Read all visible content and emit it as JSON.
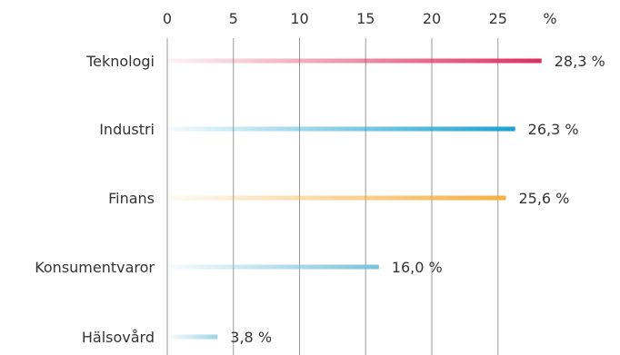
{
  "chart_data": {
    "type": "bar",
    "orientation": "horizontal",
    "unit_label": "%",
    "x_ticks": [
      0,
      5,
      10,
      15,
      20,
      25
    ],
    "xlim": [
      0,
      30
    ],
    "grid": true,
    "categories": [
      "Teknologi",
      "Industri",
      "Finans",
      "Konsumentvaror",
      "Hälsovård"
    ],
    "values": [
      28.3,
      26.3,
      25.6,
      16.0,
      3.8
    ],
    "value_labels": [
      "28,3 %",
      "26,3 %",
      "25,6 %",
      "16,0 %",
      "3,8 %"
    ],
    "colors": [
      "#dc2f5f",
      "#1aa3d1",
      "#f6b040",
      "#7cc3dc",
      "#9fd3e6"
    ]
  }
}
